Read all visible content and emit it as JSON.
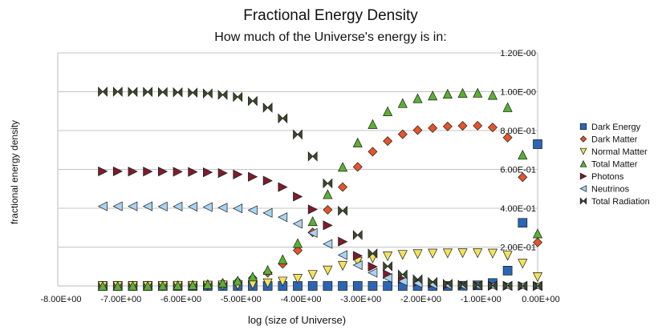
{
  "chart_data": {
    "type": "scatter",
    "title": "Fractional Energy Density",
    "subtitle": "How much of the Universe's energy is in:",
    "xlabel": "log (size of Universe)",
    "ylabel": "fractional energy density",
    "xlim": [
      -8,
      0
    ],
    "ylim": [
      0,
      1.2
    ],
    "x_ticks": [
      -8,
      -7,
      -6,
      -5,
      -4,
      -3,
      -2,
      -1,
      0
    ],
    "x_tick_labels": [
      "-8.00E+00",
      "-7.00E+00",
      "-6.00E+00",
      "-5.00E+00",
      "-4.00E+00",
      "-3.00E+00",
      "-2.00E+00",
      "-1.00E+00",
      "0.00E+00"
    ],
    "y_ticks": [
      0.2,
      0.4,
      0.6,
      0.8,
      1.0,
      1.2
    ],
    "y_tick_labels": [
      "2.00E-01",
      "4.00E-01",
      "6.00E-01",
      "8.00E-01",
      "1.00E-00",
      "1.20E-00"
    ],
    "grid": "horizontal",
    "legend_position": "right",
    "x": [
      -7.25,
      -7,
      -6.75,
      -6.5,
      -6.25,
      -6,
      -5.75,
      -5.5,
      -5.25,
      -5,
      -4.75,
      -4.5,
      -4.25,
      -4,
      -3.75,
      -3.5,
      -3.25,
      -3,
      -2.75,
      -2.5,
      -2.25,
      -2,
      -1.75,
      -1.5,
      -1.25,
      -1,
      -0.75,
      -0.5,
      -0.25,
      0
    ],
    "series": [
      {
        "name": "Dark Energy",
        "marker": "square",
        "color": "#2a66b5",
        "values": [
          0,
          0,
          0,
          0,
          0,
          0,
          0,
          0,
          0,
          0,
          0,
          0,
          0,
          0,
          0,
          0,
          0,
          0,
          0,
          0,
          0,
          0,
          0,
          0,
          0.001,
          0.003,
          0.015,
          0.079,
          0.325,
          0.73
        ]
      },
      {
        "name": "Dark Matter",
        "marker": "diamond",
        "color": "#e5542b",
        "values": [
          0,
          0,
          0.001,
          0.001,
          0.002,
          0.002,
          0.004,
          0.007,
          0.013,
          0.022,
          0.04,
          0.068,
          0.114,
          0.183,
          0.276,
          0.392,
          0.509,
          0.613,
          0.691,
          0.746,
          0.781,
          0.802,
          0.813,
          0.821,
          0.824,
          0.825,
          0.816,
          0.764,
          0.56,
          0.224
        ]
      },
      {
        "name": "Normal Matter",
        "marker": "triangle-down",
        "color": "#f2e35a",
        "values": [
          0,
          0,
          0,
          0,
          0,
          0.001,
          0.001,
          0.002,
          0.003,
          0.005,
          0.008,
          0.014,
          0.023,
          0.037,
          0.057,
          0.08,
          0.104,
          0.125,
          0.142,
          0.153,
          0.16,
          0.164,
          0.167,
          0.168,
          0.169,
          0.169,
          0.167,
          0.156,
          0.115,
          0.046
        ]
      },
      {
        "name": "Total Matter",
        "marker": "triangle-up",
        "color": "#5bb032",
        "values": [
          0,
          0,
          0.001,
          0.001,
          0.002,
          0.003,
          0.005,
          0.009,
          0.016,
          0.027,
          0.048,
          0.082,
          0.137,
          0.22,
          0.333,
          0.472,
          0.613,
          0.738,
          0.833,
          0.899,
          0.941,
          0.966,
          0.98,
          0.989,
          0.993,
          0.994,
          0.983,
          0.92,
          0.675,
          0.27
        ]
      },
      {
        "name": "Photons",
        "marker": "triangle-right",
        "color": "#7c1c2c",
        "values": [
          0.59,
          0.59,
          0.589,
          0.589,
          0.589,
          0.588,
          0.587,
          0.585,
          0.581,
          0.574,
          0.562,
          0.542,
          0.509,
          0.46,
          0.394,
          0.312,
          0.228,
          0.155,
          0.099,
          0.06,
          0.035,
          0.02,
          0.012,
          0.006,
          0.004,
          0.002,
          0.001,
          0.001,
          0,
          0
        ]
      },
      {
        "name": "Neutrinos",
        "marker": "triangle-left",
        "color": "#a9d3f0",
        "values": [
          0.41,
          0.41,
          0.41,
          0.41,
          0.409,
          0.409,
          0.408,
          0.406,
          0.403,
          0.399,
          0.39,
          0.376,
          0.354,
          0.32,
          0.273,
          0.216,
          0.159,
          0.107,
          0.068,
          0.041,
          0.024,
          0.014,
          0.008,
          0.005,
          0.002,
          0.002,
          0.001,
          0,
          0,
          0
        ]
      },
      {
        "name": "Total Radiation",
        "marker": "bowtie",
        "color": "#3b4a28",
        "values": [
          1.0,
          1.0,
          0.999,
          0.999,
          0.998,
          0.997,
          0.995,
          0.991,
          0.984,
          0.973,
          0.952,
          0.918,
          0.863,
          0.78,
          0.667,
          0.528,
          0.387,
          0.262,
          0.167,
          0.101,
          0.059,
          0.034,
          0.02,
          0.011,
          0.006,
          0.004,
          0.002,
          0.001,
          0,
          0
        ]
      }
    ]
  }
}
